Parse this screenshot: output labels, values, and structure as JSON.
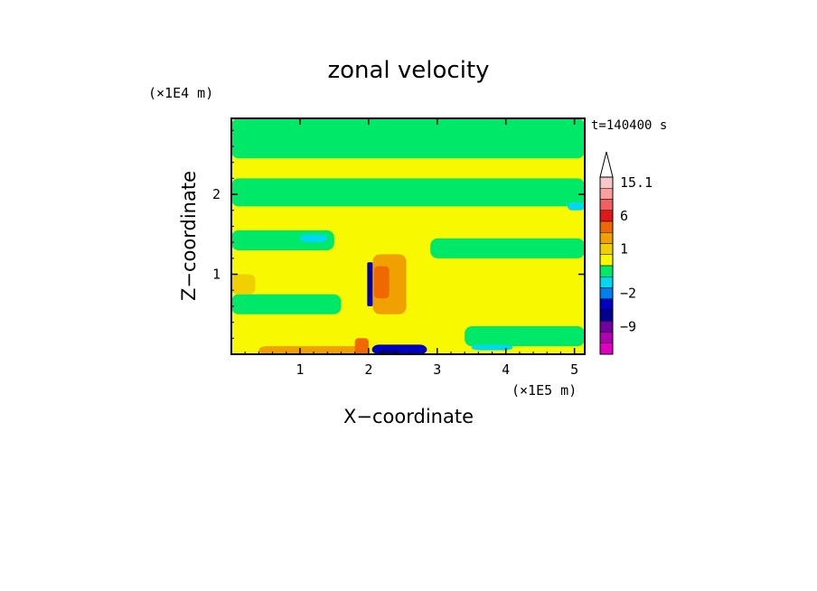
{
  "chart_data": {
    "type": "heatmap",
    "title": "zonal velocity",
    "xlabel": "X−coordinate",
    "ylabel": "Z−coordinate",
    "x_unit": "(×1E5 m)",
    "y_unit": "(×1E4 m)",
    "xlim": [
      0,
      5.15
    ],
    "ylim": [
      0,
      2.95
    ],
    "x_ticks": [
      "1",
      "2",
      "3",
      "4",
      "5"
    ],
    "y_ticks": [
      "1",
      "2"
    ],
    "timestamp": "t=140400 s",
    "colorbar": {
      "labels": [
        "15.1",
        "6",
        "1",
        "−2",
        "−9"
      ],
      "bands": [
        {
          "value": 15.1,
          "color": "#f8c8c8"
        },
        {
          "value": 12,
          "color": "#f8a0a0"
        },
        {
          "value": 9,
          "color": "#f06060"
        },
        {
          "value": 6,
          "color": "#e01818"
        },
        {
          "value": 4,
          "color": "#f06800"
        },
        {
          "value": 2,
          "color": "#f0a000"
        },
        {
          "value": 1,
          "color": "#f0d000"
        },
        {
          "value": 0.5,
          "color": "#f8f800"
        },
        {
          "value": 0,
          "color": "#00e868"
        },
        {
          "value": -1,
          "color": "#00d8f0"
        },
        {
          "value": -2,
          "color": "#0080f0"
        },
        {
          "value": -4,
          "color": "#0000c0"
        },
        {
          "value": -6,
          "color": "#000090"
        },
        {
          "value": -9,
          "color": "#7000a0"
        },
        {
          "value": -12,
          "color": "#b000b0"
        },
        {
          "value": -15,
          "color": "#e000c0"
        }
      ]
    },
    "background_value": 0.5,
    "regions": [
      {
        "name": "upper-green-1",
        "value": 0,
        "x": [
          0,
          5.15
        ],
        "y": [
          2.45,
          2.95
        ]
      },
      {
        "name": "upper-green-2",
        "value": 0,
        "x": [
          0,
          5.15
        ],
        "y": [
          1.85,
          2.2
        ]
      },
      {
        "name": "mid-green-left",
        "value": 0,
        "x": [
          0,
          1.5
        ],
        "y": [
          1.3,
          1.55
        ]
      },
      {
        "name": "mid-green-right",
        "value": 0,
        "x": [
          2.9,
          5.15
        ],
        "y": [
          1.2,
          1.45
        ]
      },
      {
        "name": "low-green-left",
        "value": 0,
        "x": [
          0,
          1.6
        ],
        "y": [
          0.5,
          0.75
        ]
      },
      {
        "name": "low-green-right",
        "value": 0,
        "x": [
          3.4,
          5.15
        ],
        "y": [
          0.1,
          0.35
        ]
      },
      {
        "name": "cyan-patch-left",
        "value": -1,
        "x": [
          1.0,
          1.4
        ],
        "y": [
          1.4,
          1.5
        ]
      },
      {
        "name": "cyan-patch-mid",
        "value": -1,
        "x": [
          3.5,
          4.1
        ],
        "y": [
          0.05,
          0.12
        ]
      },
      {
        "name": "cyan-patch-right",
        "value": -1,
        "x": [
          4.9,
          5.15
        ],
        "y": [
          1.8,
          1.9
        ]
      },
      {
        "name": "jet-core-blue",
        "value": -4,
        "x": [
          2.05,
          2.85
        ],
        "y": [
          0.0,
          0.12
        ]
      },
      {
        "name": "jet-core-dark",
        "value": -6,
        "x": [
          2.15,
          2.45
        ],
        "y": [
          0.0,
          0.06
        ]
      },
      {
        "name": "front-blue",
        "value": -4,
        "x": [
          1.98,
          2.06
        ],
        "y": [
          0.6,
          1.15
        ]
      },
      {
        "name": "front-dark",
        "value": -6,
        "x": [
          2.0,
          2.04
        ],
        "y": [
          0.7,
          1.1
        ]
      },
      {
        "name": "orange-lobe",
        "value": 2,
        "x": [
          2.06,
          2.55
        ],
        "y": [
          0.5,
          1.25
        ]
      },
      {
        "name": "orange-core",
        "value": 4,
        "x": [
          2.08,
          2.3
        ],
        "y": [
          0.7,
          1.1
        ]
      },
      {
        "name": "surface-orange",
        "value": 2,
        "x": [
          0.4,
          2.0
        ],
        "y": [
          0.0,
          0.1
        ]
      },
      {
        "name": "surface-red",
        "value": 4,
        "x": [
          1.8,
          2.0
        ],
        "y": [
          0.0,
          0.2
        ]
      },
      {
        "name": "left-orange",
        "value": 1,
        "x": [
          0,
          0.35
        ],
        "y": [
          0.75,
          1.0
        ]
      }
    ]
  }
}
